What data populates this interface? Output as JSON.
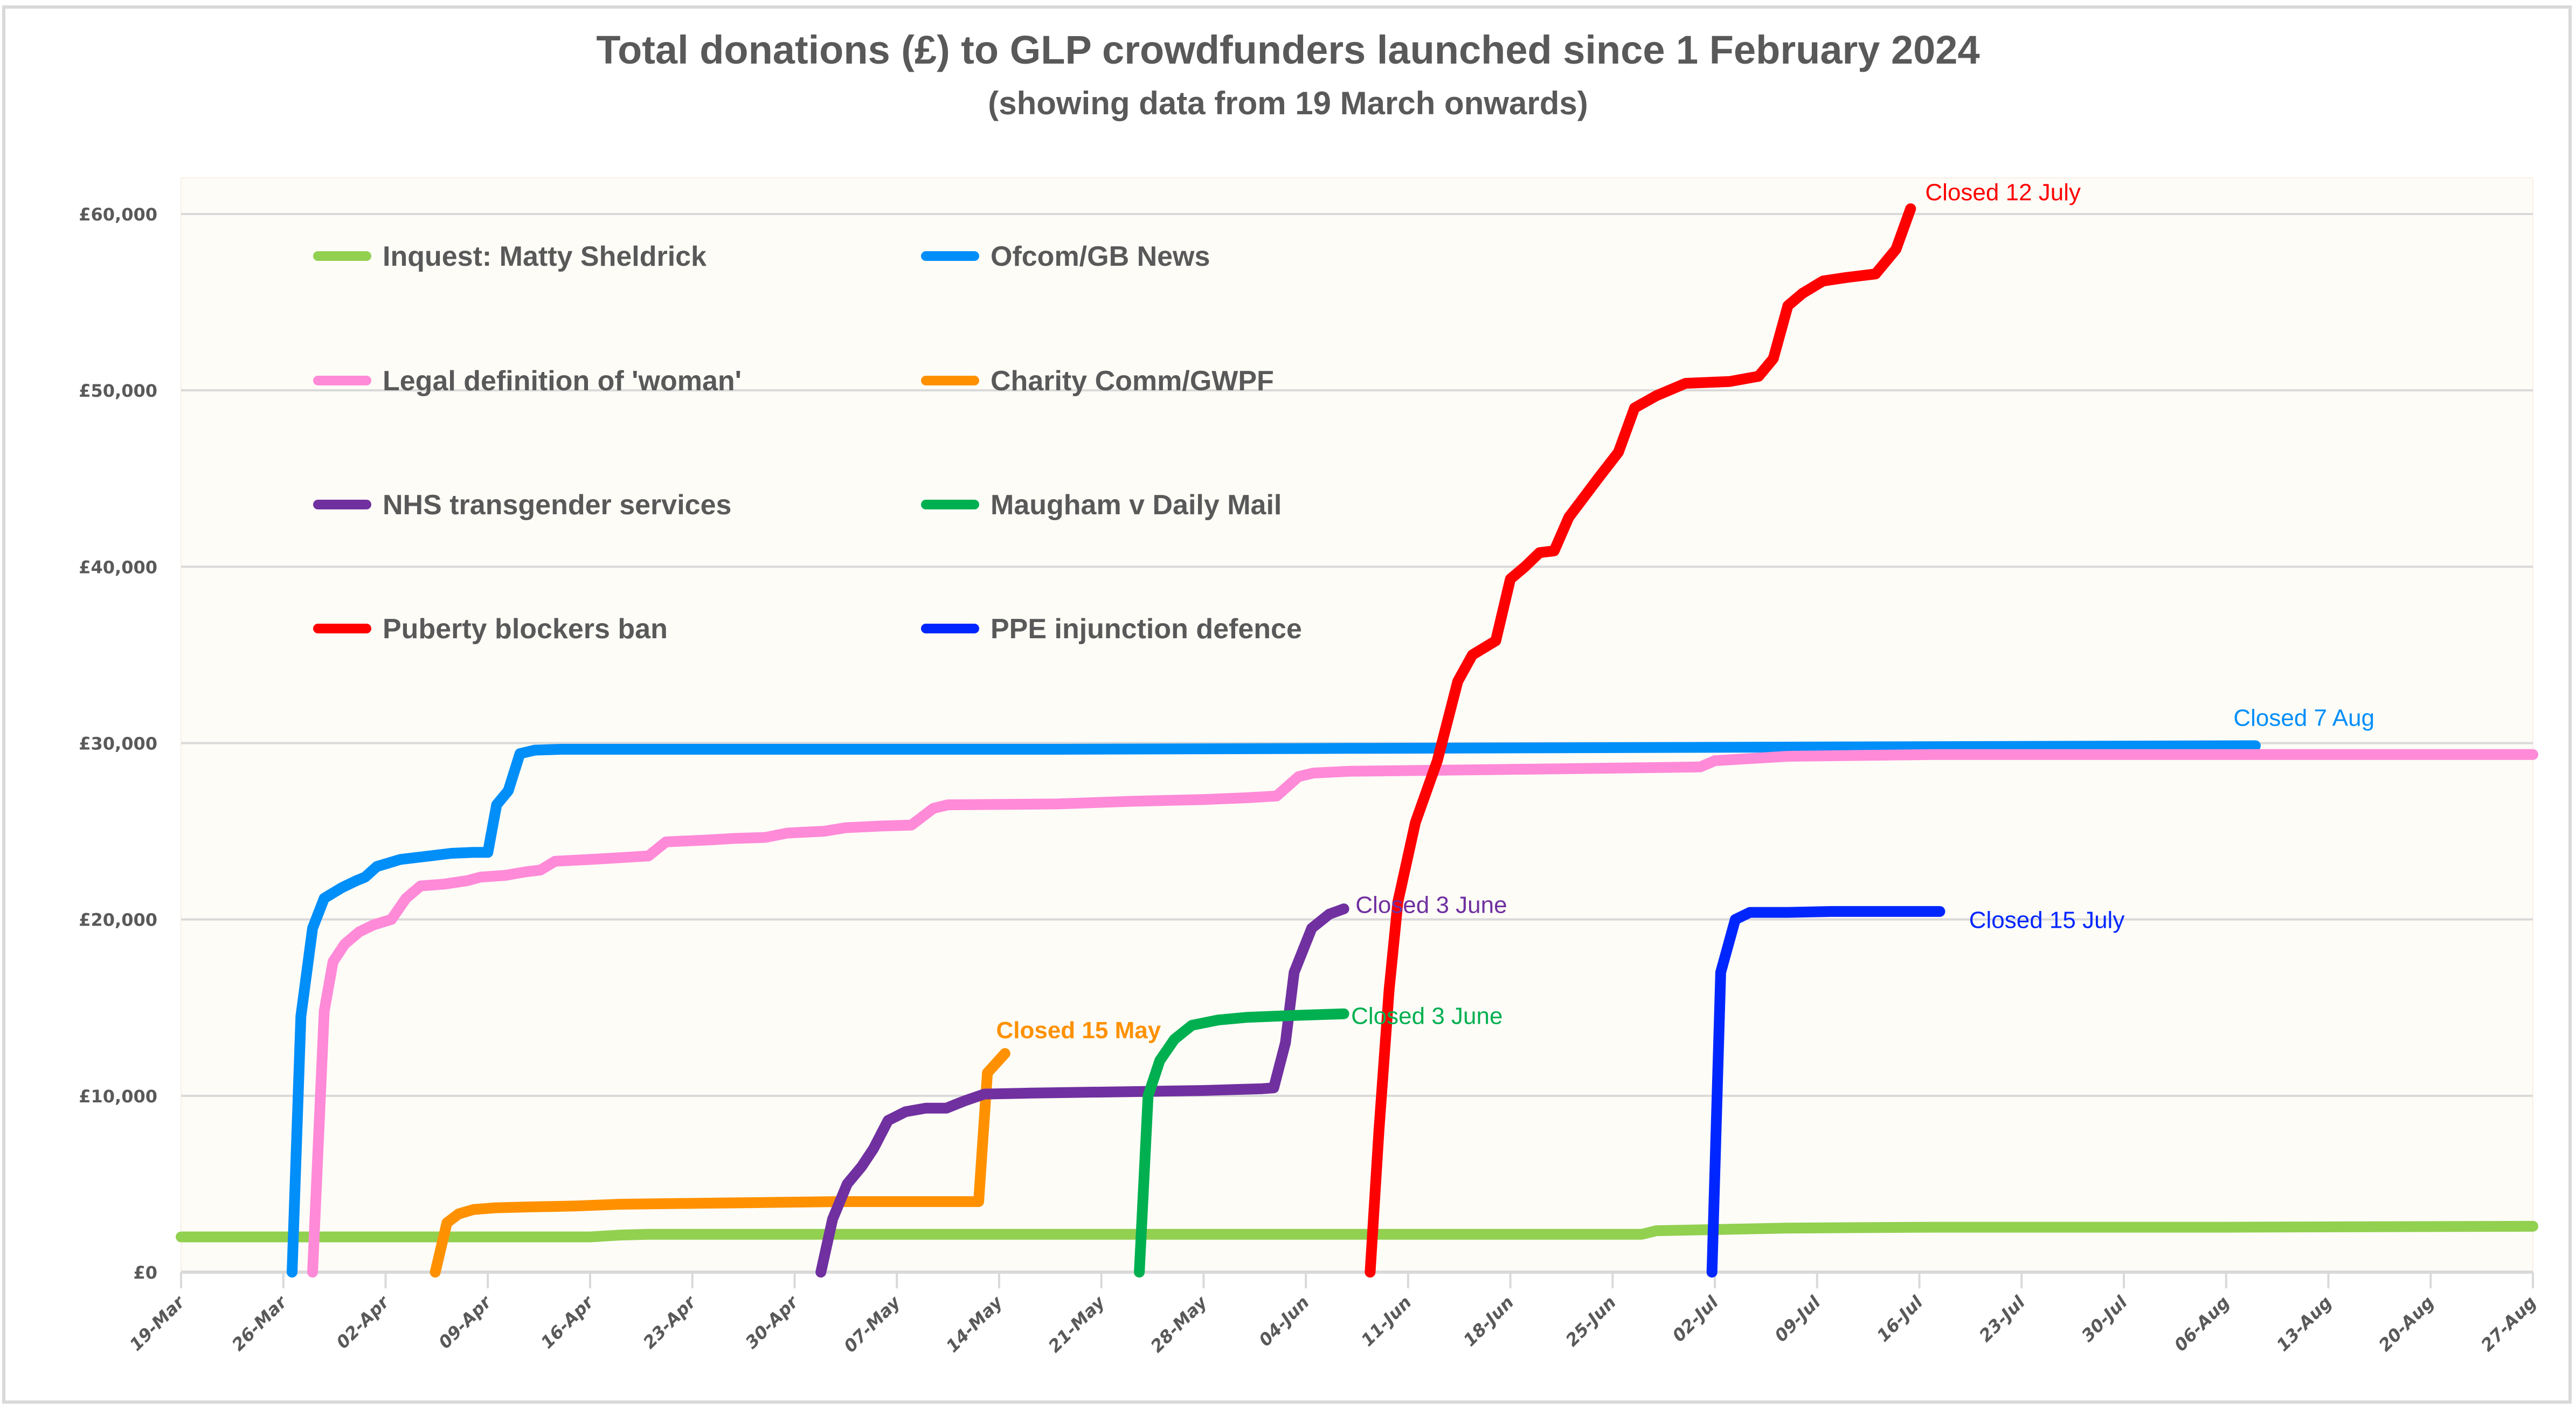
{
  "chart_data": {
    "type": "line",
    "title": "Total donations (£) to GLP crowdfunders launched since 1 February 2024",
    "subtitle": "(showing data from 19 March onwards)",
    "xlabel": "",
    "ylabel": "",
    "x_start_date": "19-Mar",
    "x_unit": "days since 19-Mar",
    "xlim": [
      0,
      161
    ],
    "ylim": [
      0,
      60000
    ],
    "grid": true,
    "legend_position": "top-left",
    "plot_background": "#fdfcf7",
    "yticks": [
      {
        "value": 0,
        "label": "£0"
      },
      {
        "value": 10000,
        "label": "£10,000"
      },
      {
        "value": 20000,
        "label": "£20,000"
      },
      {
        "value": 30000,
        "label": "£30,000"
      },
      {
        "value": 40000,
        "label": "£40,000"
      },
      {
        "value": 50000,
        "label": "£50,000"
      },
      {
        "value": 60000,
        "label": "£60,000"
      }
    ],
    "xticks": [
      {
        "value": 0,
        "label": "19-Mar"
      },
      {
        "value": 7,
        "label": "26-Mar"
      },
      {
        "value": 14,
        "label": "02-Apr"
      },
      {
        "value": 21,
        "label": "09-Apr"
      },
      {
        "value": 28,
        "label": "16-Apr"
      },
      {
        "value": 35,
        "label": "23-Apr"
      },
      {
        "value": 42,
        "label": "30-Apr"
      },
      {
        "value": 49,
        "label": "07-May"
      },
      {
        "value": 56,
        "label": "14-May"
      },
      {
        "value": 63,
        "label": "21-May"
      },
      {
        "value": 70,
        "label": "28-May"
      },
      {
        "value": 77,
        "label": "04-Jun"
      },
      {
        "value": 84,
        "label": "11-Jun"
      },
      {
        "value": 91,
        "label": "18-Jun"
      },
      {
        "value": 98,
        "label": "25-Jun"
      },
      {
        "value": 105,
        "label": "02-Jul"
      },
      {
        "value": 112,
        "label": "09-Jul"
      },
      {
        "value": 119,
        "label": "16-Jul"
      },
      {
        "value": 126,
        "label": "23-Jul"
      },
      {
        "value": 133,
        "label": "30-Jul"
      },
      {
        "value": 140,
        "label": "06-Aug"
      },
      {
        "value": 147,
        "label": "13-Aug"
      },
      {
        "value": 154,
        "label": "20-Aug"
      },
      {
        "value": 161,
        "label": "27-Aug"
      }
    ],
    "series": [
      {
        "name": "Inquest: Matty Sheldrick",
        "color": "#92d050",
        "points": [
          [
            0,
            2000
          ],
          [
            28,
            2000
          ],
          [
            30,
            2100
          ],
          [
            32,
            2150
          ],
          [
            60,
            2150
          ],
          [
            100,
            2150
          ],
          [
            101,
            2350
          ],
          [
            104,
            2400
          ],
          [
            110,
            2500
          ],
          [
            120,
            2550
          ],
          [
            140,
            2550
          ],
          [
            161,
            2600
          ]
        ]
      },
      {
        "name": "Ofcom/GB News",
        "color": "#008ef9",
        "points": [
          [
            7.6,
            0
          ],
          [
            8.2,
            14500
          ],
          [
            9,
            19500
          ],
          [
            9.8,
            21200
          ],
          [
            11,
            21800
          ],
          [
            12,
            22200
          ],
          [
            12.6,
            22400
          ],
          [
            13.4,
            23000
          ],
          [
            14.2,
            23200
          ],
          [
            15,
            23400
          ],
          [
            17,
            23600
          ],
          [
            18.5,
            23750
          ],
          [
            20,
            23800
          ],
          [
            21,
            23800
          ],
          [
            21.6,
            26500
          ],
          [
            22.4,
            27300
          ],
          [
            23.2,
            29400
          ],
          [
            24.2,
            29600
          ],
          [
            26,
            29650
          ],
          [
            60,
            29650
          ],
          [
            80,
            29700
          ],
          [
            142,
            29850
          ]
        ]
      },
      {
        "name": "Legal definition of 'woman'",
        "color": "#ff8ad8",
        "points": [
          [
            9,
            0
          ],
          [
            9.8,
            14800
          ],
          [
            10.4,
            17600
          ],
          [
            11.2,
            18600
          ],
          [
            12.2,
            19300
          ],
          [
            13.2,
            19700
          ],
          [
            14.4,
            20000
          ],
          [
            15.4,
            21200
          ],
          [
            16.4,
            21900
          ],
          [
            18,
            22000
          ],
          [
            19.6,
            22200
          ],
          [
            20.5,
            22400
          ],
          [
            22.2,
            22500
          ],
          [
            23.6,
            22700
          ],
          [
            24.6,
            22800
          ],
          [
            25.6,
            23300
          ],
          [
            28,
            23400
          ],
          [
            30,
            23500
          ],
          [
            32,
            23600
          ],
          [
            33.2,
            24400
          ],
          [
            36,
            24500
          ],
          [
            38,
            24600
          ],
          [
            40,
            24650
          ],
          [
            41.5,
            24900
          ],
          [
            44,
            25000
          ],
          [
            45.5,
            25200
          ],
          [
            48,
            25300
          ],
          [
            50,
            25350
          ],
          [
            51.5,
            26300
          ],
          [
            52.5,
            26500
          ],
          [
            60,
            26550
          ],
          [
            65,
            26700
          ],
          [
            70,
            26800
          ],
          [
            73,
            26900
          ],
          [
            75,
            27000
          ],
          [
            76.5,
            28100
          ],
          [
            77.5,
            28300
          ],
          [
            80,
            28400
          ],
          [
            90,
            28500
          ],
          [
            100,
            28600
          ],
          [
            104,
            28650
          ],
          [
            105,
            29000
          ],
          [
            107,
            29100
          ],
          [
            110,
            29250
          ],
          [
            120,
            29350
          ],
          [
            140,
            29350
          ],
          [
            161,
            29350
          ]
        ]
      },
      {
        "name": "Charity Comm/GWPF",
        "color": "#ff9100",
        "points": [
          [
            17.4,
            0
          ],
          [
            18.2,
            2800
          ],
          [
            19,
            3300
          ],
          [
            20,
            3550
          ],
          [
            21.5,
            3650
          ],
          [
            24,
            3700
          ],
          [
            27,
            3750
          ],
          [
            30,
            3850
          ],
          [
            35,
            3900
          ],
          [
            40,
            3950
          ],
          [
            45,
            4000
          ],
          [
            50,
            4000
          ],
          [
            54.6,
            4000
          ],
          [
            55.2,
            11300
          ],
          [
            56.4,
            12400
          ]
        ]
      },
      {
        "name": "NHS transgender services",
        "color": "#7030a0",
        "points": [
          [
            43.8,
            0
          ],
          [
            44.6,
            3000
          ],
          [
            45.6,
            5000
          ],
          [
            46.6,
            6000
          ],
          [
            47.4,
            7000
          ],
          [
            48.4,
            8600
          ],
          [
            49.6,
            9100
          ],
          [
            51,
            9300
          ],
          [
            52.4,
            9300
          ],
          [
            53.6,
            9700
          ],
          [
            55,
            10100
          ],
          [
            58,
            10150
          ],
          [
            62,
            10200
          ],
          [
            66,
            10250
          ],
          [
            70,
            10300
          ],
          [
            74,
            10400
          ],
          [
            74.8,
            10450
          ],
          [
            75.6,
            13000
          ],
          [
            76.2,
            17000
          ],
          [
            77.4,
            19500
          ],
          [
            78.6,
            20300
          ],
          [
            79.6,
            20600
          ]
        ]
      },
      {
        "name": "Maugham v Daily Mail",
        "color": "#00b050",
        "points": [
          [
            65.6,
            0
          ],
          [
            66.2,
            10000
          ],
          [
            67,
            12000
          ],
          [
            68,
            13200
          ],
          [
            69.2,
            14000
          ],
          [
            71,
            14300
          ],
          [
            73,
            14450
          ],
          [
            76,
            14550
          ],
          [
            79.6,
            14650
          ]
        ]
      },
      {
        "name": "Puberty blockers ban",
        "color": "#ff0000",
        "points": [
          [
            81.4,
            0
          ],
          [
            82,
            8000
          ],
          [
            82.7,
            16000
          ],
          [
            83.3,
            21000
          ],
          [
            84.5,
            25500
          ],
          [
            86,
            29000
          ],
          [
            87.4,
            33500
          ],
          [
            88.4,
            35000
          ],
          [
            90,
            35800
          ],
          [
            91,
            39300
          ],
          [
            92,
            40000
          ],
          [
            93,
            40800
          ],
          [
            94,
            40900
          ],
          [
            95,
            42800
          ],
          [
            97,
            45000
          ],
          [
            98.4,
            46500
          ],
          [
            99.5,
            49000
          ],
          [
            101,
            49700
          ],
          [
            103,
            50400
          ],
          [
            106,
            50500
          ],
          [
            108,
            50800
          ],
          [
            109,
            51800
          ],
          [
            110,
            54800
          ],
          [
            111,
            55500
          ],
          [
            112.4,
            56200
          ],
          [
            114,
            56400
          ],
          [
            116,
            56600
          ],
          [
            117.4,
            58000
          ],
          [
            118.4,
            60300
          ]
        ]
      },
      {
        "name": "PPE injunction defence",
        "color": "#0026ff",
        "points": [
          [
            104.8,
            0
          ],
          [
            105.4,
            17000
          ],
          [
            106.4,
            20000
          ],
          [
            107.4,
            20400
          ],
          [
            110,
            20400
          ],
          [
            113,
            20450
          ],
          [
            117,
            20450
          ],
          [
            120.4,
            20450
          ]
        ]
      }
    ],
    "annotations": [
      {
        "text": "Closed 12 July",
        "series": "Puberty blockers ban",
        "color": "#ff0000",
        "at": [
          119.4,
          61200
        ]
      },
      {
        "text": "Closed 7 Aug",
        "series": "Ofcom/GB News",
        "color": "#008ef9",
        "at": [
          140.5,
          31400
        ]
      },
      {
        "text": "Closed 3 June",
        "series": "NHS transgender services",
        "color": "#7030a0",
        "at": [
          80.4,
          20800
        ]
      },
      {
        "text": "Closed 3 June",
        "series": "Maugham v Daily Mail",
        "color": "#00b050",
        "at": [
          80.1,
          14500
        ]
      },
      {
        "text": "Closed 15 May",
        "series": "Charity Comm/GWPF",
        "color": "#ff9100",
        "at": [
          55.8,
          13700
        ],
        "bold": true
      },
      {
        "text": "Closed 15 July",
        "series": "PPE injunction defence",
        "color": "#0026ff",
        "at": [
          122.4,
          19950
        ]
      }
    ]
  }
}
